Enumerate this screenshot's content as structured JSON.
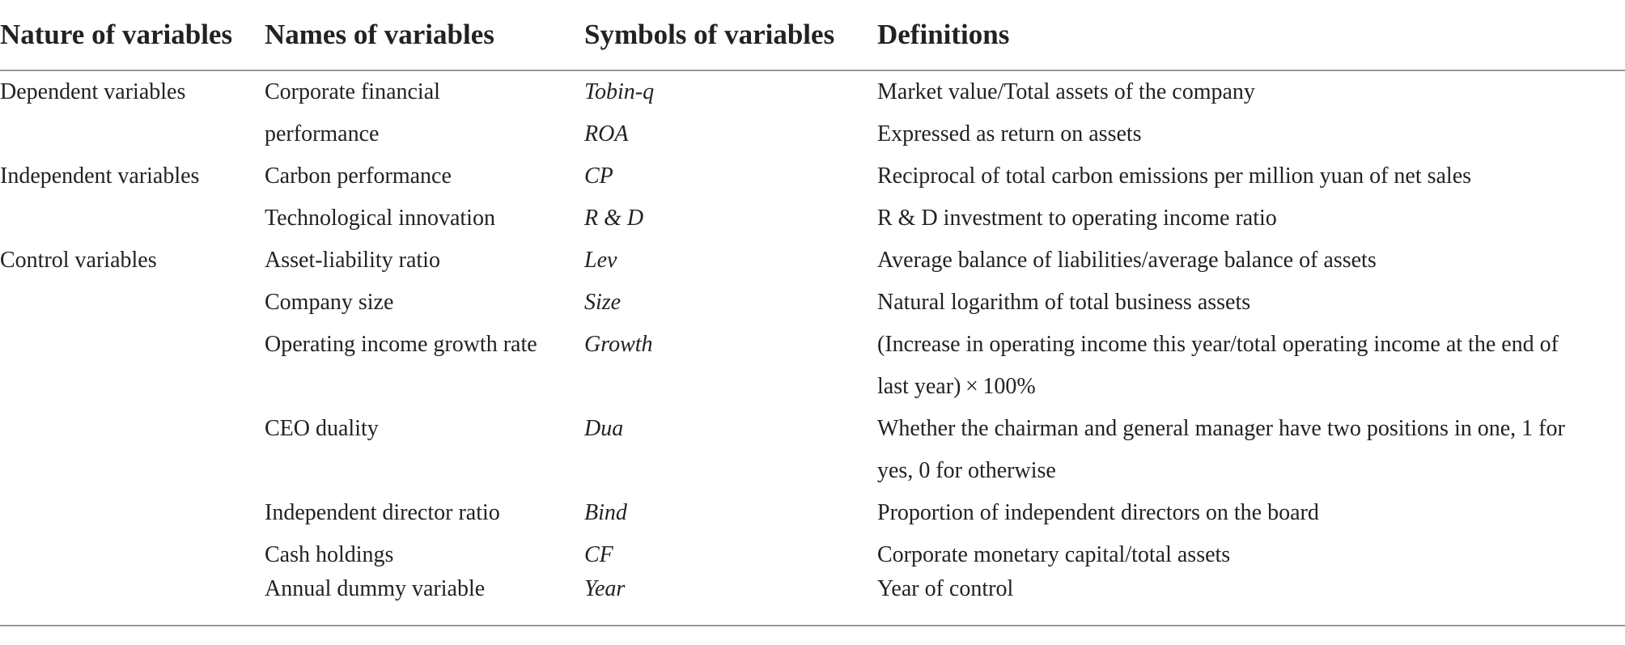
{
  "headers": {
    "nature": "Nature of variables",
    "names": "Names of variables",
    "symbols": "Symbols of variables",
    "definitions": "Definitions"
  },
  "rows": [
    {
      "nature": "Dependent variables",
      "name": "Corporate financial",
      "symbol": "Tobin-q",
      "definition": "Market value/Total assets of the company"
    },
    {
      "nature": "",
      "name": "performance",
      "symbol": "ROA",
      "definition": "Expressed as return on assets"
    },
    {
      "nature": "Independent variables",
      "name": "Carbon performance",
      "symbol": "CP",
      "definition": "Reciprocal of total carbon emissions per million yuan of net sales"
    },
    {
      "nature": "",
      "name": "Technological innovation",
      "symbol": "R & D",
      "definition": "R & D investment to operating income ratio"
    },
    {
      "nature": "Control variables",
      "name": "Asset-liability ratio",
      "symbol": "Lev",
      "definition": "Average balance of liabilities/average balance of assets"
    },
    {
      "nature": "",
      "name": "Company size",
      "symbol": "Size",
      "definition": "Natural logarithm of total business assets"
    },
    {
      "nature": "",
      "name": "Operating income growth rate",
      "symbol": "Growth",
      "definition": "(Increase in operating income this year/total operating income at the end of"
    },
    {
      "nature": "",
      "name": "",
      "symbol": "",
      "definition": "last year) × 100%"
    },
    {
      "nature": "",
      "name": "CEO duality",
      "symbol": "Dua",
      "definition": "Whether the chairman and general manager have two positions in one, 1 for"
    },
    {
      "nature": "",
      "name": "",
      "symbol": "",
      "definition": "yes, 0 for otherwise"
    },
    {
      "nature": "",
      "name": "Independent director ratio",
      "symbol": "Bind",
      "definition": "Proportion of independent directors on the board"
    },
    {
      "nature": "",
      "name": "Cash holdings",
      "symbol": "CF",
      "definition": "Corporate monetary capital/total assets"
    },
    {
      "nature": "",
      "name": "Annual dummy variable",
      "symbol": "Year",
      "definition": "Year of control"
    }
  ]
}
